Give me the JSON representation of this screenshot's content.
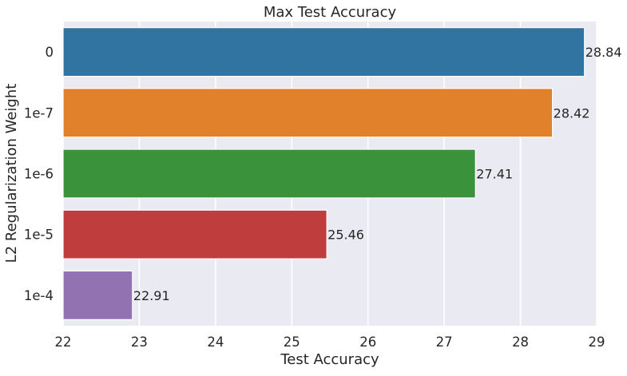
{
  "chart_data": {
    "type": "bar",
    "orientation": "horizontal",
    "title": "Max Test Accuracy",
    "xlabel": "Test Accuracy",
    "ylabel": "L2 Regularization Weight",
    "categories": [
      "0",
      "1e-7",
      "1e-6",
      "1e-5",
      "1e-4"
    ],
    "values": [
      28.84,
      28.42,
      27.41,
      25.46,
      22.91
    ],
    "data_labels": [
      "28.84",
      "28.42",
      "27.41",
      "25.46",
      "22.91"
    ],
    "xlim": [
      22,
      29
    ],
    "xticks": [
      22,
      23,
      24,
      25,
      26,
      27,
      28,
      29
    ],
    "colors": [
      "#3274a1",
      "#e1812c",
      "#3a923a",
      "#c03d3e",
      "#9372b2"
    ],
    "grid": true,
    "background": "#eaeaf2"
  }
}
